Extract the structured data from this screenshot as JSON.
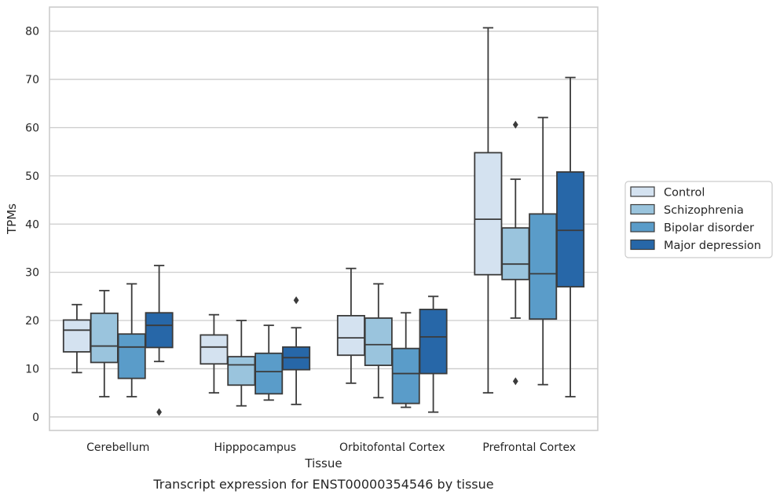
{
  "caption": "Transcript expression for ENST00000354546 by tissue",
  "chart_data": {
    "type": "boxplot",
    "xlabel": "Tissue",
    "ylabel": "TPMs",
    "ylim": [
      -2.8,
      85
    ],
    "yticks": [
      0,
      10,
      20,
      30,
      40,
      50,
      60,
      70,
      80
    ],
    "grid": true,
    "legend_position": "right",
    "categories": [
      "Cerebellum",
      "Hipppocampus",
      "Orbitofontal Cortex",
      "Prefrontal Cortex"
    ],
    "series": [
      {
        "name": "Control",
        "color": "#d4e2f0",
        "boxes": [
          {
            "whisker_low": 9.2,
            "q1": 13.5,
            "median": 18.0,
            "q3": 20.1,
            "whisker_high": 23.3,
            "outliers": []
          },
          {
            "whisker_low": 5.0,
            "q1": 11.0,
            "median": 14.5,
            "q3": 17.0,
            "whisker_high": 21.2,
            "outliers": []
          },
          {
            "whisker_low": 7.0,
            "q1": 12.8,
            "median": 16.4,
            "q3": 21.0,
            "whisker_high": 30.8,
            "outliers": []
          },
          {
            "whisker_low": 5.0,
            "q1": 29.5,
            "median": 41.0,
            "q3": 54.8,
            "whisker_high": 80.7,
            "outliers": []
          }
        ]
      },
      {
        "name": "Schizophrenia",
        "color": "#9ac4dd",
        "boxes": [
          {
            "whisker_low": 4.2,
            "q1": 11.3,
            "median": 14.7,
            "q3": 21.5,
            "whisker_high": 26.2,
            "outliers": []
          },
          {
            "whisker_low": 2.3,
            "q1": 6.6,
            "median": 10.8,
            "q3": 12.5,
            "whisker_high": 20.0,
            "outliers": []
          },
          {
            "whisker_low": 4.0,
            "q1": 10.7,
            "median": 15.0,
            "q3": 20.5,
            "whisker_high": 27.6,
            "outliers": []
          },
          {
            "whisker_low": 20.5,
            "q1": 28.5,
            "median": 31.7,
            "q3": 39.2,
            "whisker_high": 49.3,
            "outliers": [
              7.4,
              60.6
            ]
          }
        ]
      },
      {
        "name": "Bipolar disorder",
        "color": "#5a9cc9",
        "boxes": [
          {
            "whisker_low": 4.2,
            "q1": 8.0,
            "median": 14.5,
            "q3": 17.2,
            "whisker_high": 27.6,
            "outliers": []
          },
          {
            "whisker_low": 3.5,
            "q1": 4.8,
            "median": 9.4,
            "q3": 13.2,
            "whisker_high": 19.0,
            "outliers": []
          },
          {
            "whisker_low": 2.0,
            "q1": 2.8,
            "median": 9.0,
            "q3": 14.2,
            "whisker_high": 21.6,
            "outliers": []
          },
          {
            "whisker_low": 6.7,
            "q1": 20.3,
            "median": 29.7,
            "q3": 42.1,
            "whisker_high": 62.1,
            "outliers": []
          }
        ]
      },
      {
        "name": "Major depression",
        "color": "#2767a8",
        "boxes": [
          {
            "whisker_low": 11.5,
            "q1": 14.4,
            "median": 19.0,
            "q3": 21.6,
            "whisker_high": 31.4,
            "outliers": [
              1.0
            ]
          },
          {
            "whisker_low": 2.6,
            "q1": 9.8,
            "median": 12.3,
            "q3": 14.5,
            "whisker_high": 18.5,
            "outliers": [
              24.2
            ]
          },
          {
            "whisker_low": 1.0,
            "q1": 9.0,
            "median": 16.6,
            "q3": 22.3,
            "whisker_high": 25.0,
            "outliers": []
          },
          {
            "whisker_low": 4.2,
            "q1": 27.0,
            "median": 38.7,
            "q3": 50.8,
            "whisker_high": 70.4,
            "outliers": []
          }
        ]
      }
    ]
  }
}
